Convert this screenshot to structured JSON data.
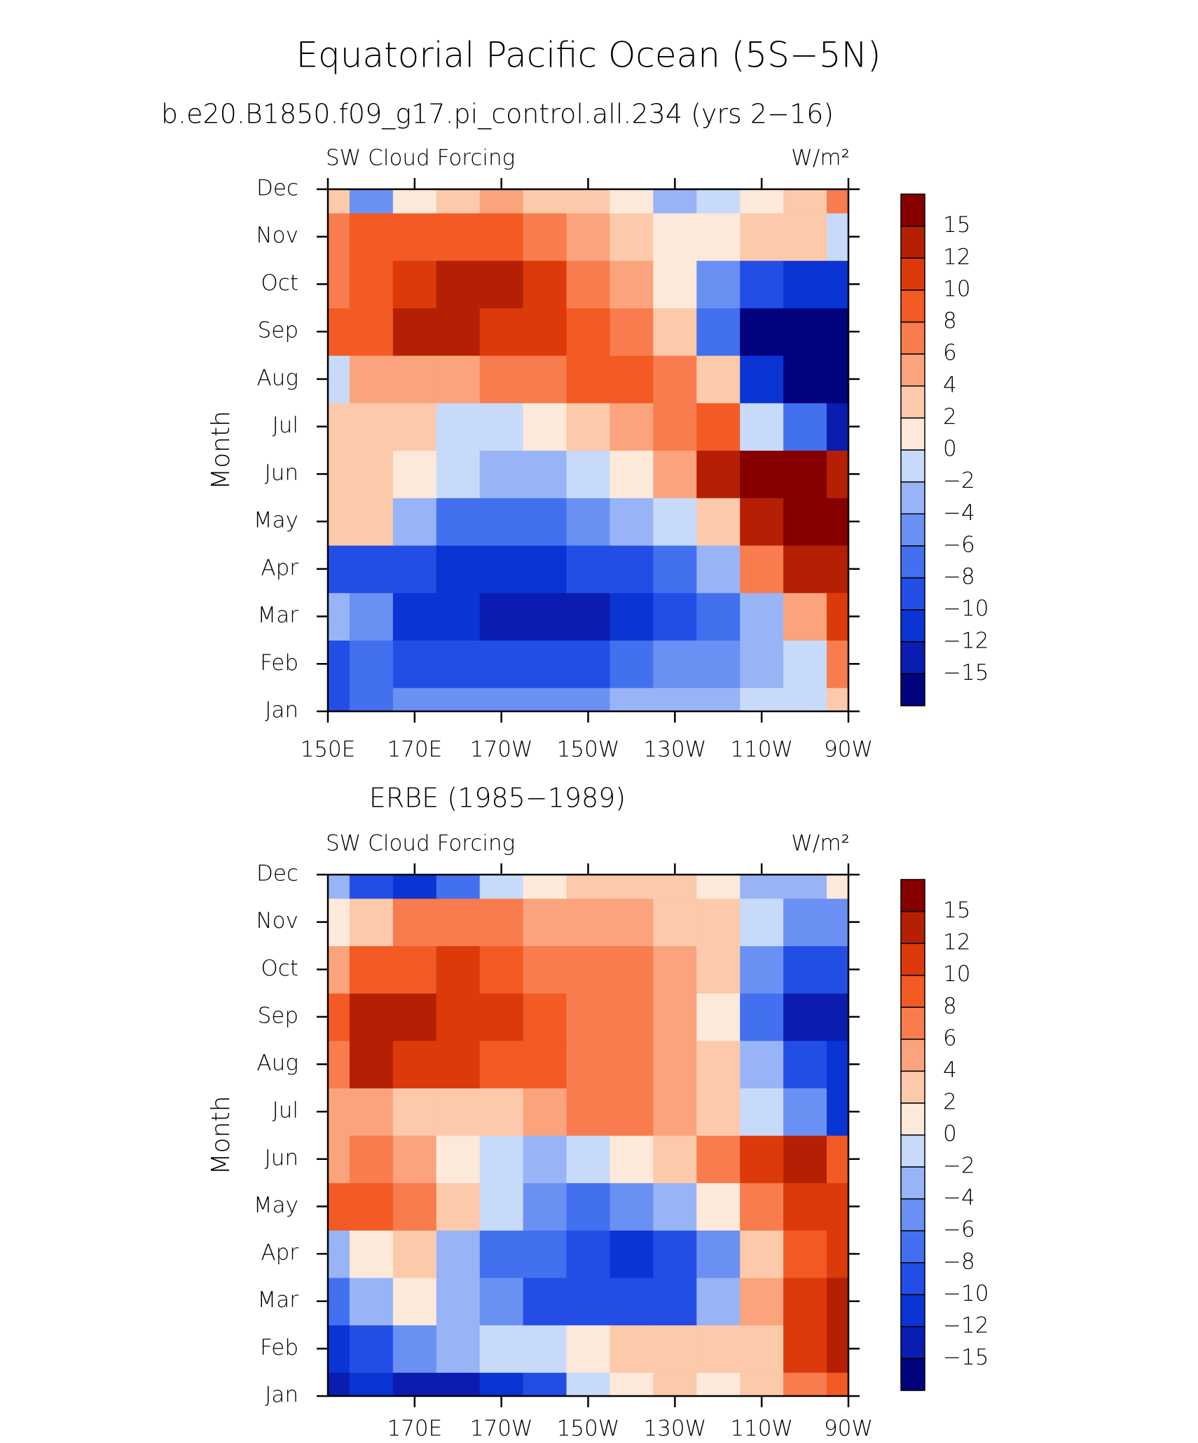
{
  "title": "Equatorial Pacific Ocean (5S−5N)",
  "chart_data": [
    {
      "type": "contour",
      "title": "b.e20.B1850.f09_g17.pi_control.all.234 (yrs 2−16)",
      "left_label": "SW Cloud Forcing",
      "right_label": "W/m²",
      "ylabel": "Month",
      "categories": [
        "Jan",
        "Feb",
        "Mar",
        "Apr",
        "May",
        "Jun",
        "Jul",
        "Aug",
        "Sep",
        "Oct",
        "Nov",
        "Dec"
      ],
      "x": [
        150,
        160,
        170,
        180,
        190,
        200,
        210,
        220,
        230,
        240,
        250,
        260,
        270
      ],
      "xlim": [
        150,
        270
      ],
      "xticks": [
        {
          "value": 150,
          "label": "150E"
        },
        {
          "value": 170,
          "label": "170E"
        },
        {
          "value": 190,
          "label": "170W"
        },
        {
          "value": 210,
          "label": "150W"
        },
        {
          "value": 230,
          "label": "130W"
        },
        {
          "value": 250,
          "label": "110W"
        },
        {
          "value": 270,
          "label": "90W"
        }
      ],
      "z": [
        [
          -10,
          -8,
          -6,
          -6,
          -6,
          -6,
          -6,
          -4,
          -4,
          -3,
          -2,
          -1,
          2
        ],
        [
          -9,
          -8,
          -10,
          -10,
          -10,
          -9,
          -9,
          -8,
          -6,
          -5,
          -3,
          -1,
          6
        ],
        [
          -3,
          -6,
          -11,
          -12,
          -13,
          -13,
          -14,
          -12,
          -9,
          -7,
          -4,
          4,
          10
        ],
        [
          -9,
          -9,
          -10,
          -11,
          -11,
          -11,
          -10,
          -9,
          -7,
          -3,
          6,
          12,
          14
        ],
        [
          2,
          2,
          -3,
          -7,
          -8,
          -8,
          -6,
          -4,
          -2,
          3,
          12,
          16,
          17
        ],
        [
          3,
          2,
          1,
          -2,
          -4,
          -4,
          -2,
          0,
          4,
          14,
          17,
          17,
          13
        ],
        [
          3,
          3,
          2,
          -2,
          -1,
          0,
          2,
          4,
          7,
          8,
          -2,
          -8,
          -13
        ],
        [
          -1,
          4,
          4,
          5,
          6,
          7,
          8,
          9,
          6,
          2,
          -12,
          -16,
          -16
        ],
        [
          8,
          8,
          12,
          13,
          11,
          10,
          9,
          6,
          3,
          -8,
          -16,
          -16,
          -16
        ],
        [
          7,
          8,
          11,
          12,
          12,
          10,
          7,
          4,
          1,
          -5,
          -10,
          -11,
          -11
        ],
        [
          7,
          8,
          9,
          9,
          8,
          7,
          5,
          3,
          1,
          0,
          2,
          3,
          -2
        ],
        [
          2,
          -6,
          0,
          3,
          4,
          3,
          2,
          1,
          -3,
          -2,
          1,
          3,
          6
        ]
      ],
      "levels": [
        {
          "value": -15,
          "label": "−15"
        },
        {
          "value": -12,
          "label": "−12"
        },
        {
          "value": -10,
          "label": "−10"
        },
        {
          "value": -8,
          "label": "−8"
        },
        {
          "value": -6,
          "label": "−6"
        },
        {
          "value": -4,
          "label": "−4"
        },
        {
          "value": -2,
          "label": "−2"
        },
        0,
        2,
        4,
        6,
        8,
        10,
        12,
        15
      ],
      "colors": [
        "#03037d",
        "#0b1cb0",
        "#0a34d4",
        "#234ee6",
        "#4270ef",
        "#6a90f3",
        "#98b4f6",
        "#c8dafa",
        "#fde9d9",
        "#fcc9ab",
        "#fba37c",
        "#f87c4e",
        "#f35a24",
        "#dc3a0a",
        "#b52005",
        "#860000"
      ]
    },
    {
      "type": "contour",
      "title": "ERBE (1985−1989)",
      "left_label": "SW Cloud Forcing",
      "right_label": "W/m²",
      "ylabel": "Month",
      "categories": [
        "Jan",
        "Feb",
        "Mar",
        "Apr",
        "May",
        "Jun",
        "Jul",
        "Aug",
        "Sep",
        "Oct",
        "Nov",
        "Dec"
      ],
      "x": [
        150,
        160,
        170,
        180,
        190,
        200,
        210,
        220,
        230,
        240,
        250,
        260,
        270
      ],
      "xlim": [
        150,
        270
      ],
      "xticks": [
        {
          "value": 170,
          "label": "170E"
        },
        {
          "value": 190,
          "label": "170W"
        },
        {
          "value": 210,
          "label": "150W"
        },
        {
          "value": 230,
          "label": "130W"
        },
        {
          "value": 250,
          "label": "110W"
        },
        {
          "value": 270,
          "label": "90W"
        }
      ],
      "z": [
        [
          -13,
          -12,
          -14,
          -13,
          -11,
          -9,
          -2,
          1,
          2,
          1,
          2,
          6,
          8
        ],
        [
          -11,
          -9,
          -6,
          -3,
          -1,
          -2,
          1,
          2,
          3,
          2,
          3,
          10,
          14
        ],
        [
          -8,
          -3,
          0,
          -3,
          -6,
          -9,
          -10,
          -10,
          -9,
          -3,
          4,
          10,
          14
        ],
        [
          -4,
          0,
          3,
          -3,
          -8,
          -8,
          -10,
          -11,
          -9,
          -5,
          2,
          8,
          10
        ],
        [
          9,
          9,
          6,
          3,
          -2,
          -6,
          -7,
          -6,
          -4,
          0,
          6,
          11,
          11
        ],
        [
          5,
          6,
          5,
          1,
          -1,
          -3,
          -2,
          0,
          2,
          6,
          10,
          12,
          8
        ],
        [
          4,
          4,
          2,
          3,
          3,
          5,
          6,
          6,
          4,
          2,
          -2,
          -6,
          -12
        ],
        [
          6,
          12,
          11,
          10,
          8,
          8,
          7,
          6,
          5,
          2,
          -4,
          -10,
          -12
        ],
        [
          9,
          12,
          12,
          10,
          10,
          9,
          6,
          6,
          5,
          1,
          -8,
          -13,
          -13
        ],
        [
          4,
          8,
          8,
          11,
          8,
          6,
          6,
          7,
          5,
          2,
          -5,
          -9,
          -10
        ],
        [
          0,
          3,
          6,
          7,
          6,
          4,
          4,
          4,
          3,
          2,
          -2,
          -6,
          -6
        ],
        [
          -3,
          -10,
          -12,
          -8,
          -2,
          1,
          2,
          2,
          2,
          1,
          -3,
          -4,
          1
        ]
      ],
      "levels": [
        {
          "value": -15,
          "label": "−15"
        },
        {
          "value": -12,
          "label": "−12"
        },
        {
          "value": -10,
          "label": "−10"
        },
        {
          "value": -8,
          "label": "−8"
        },
        {
          "value": -6,
          "label": "−6"
        },
        {
          "value": -4,
          "label": "−4"
        },
        {
          "value": -2,
          "label": "−2"
        },
        0,
        2,
        4,
        6,
        8,
        10,
        12,
        15
      ],
      "colors": [
        "#03037d",
        "#0b1cb0",
        "#0a34d4",
        "#234ee6",
        "#4270ef",
        "#6a90f3",
        "#98b4f6",
        "#c8dafa",
        "#fde9d9",
        "#fcc9ab",
        "#fba37c",
        "#f87c4e",
        "#f35a24",
        "#dc3a0a",
        "#b52005",
        "#860000"
      ]
    }
  ]
}
